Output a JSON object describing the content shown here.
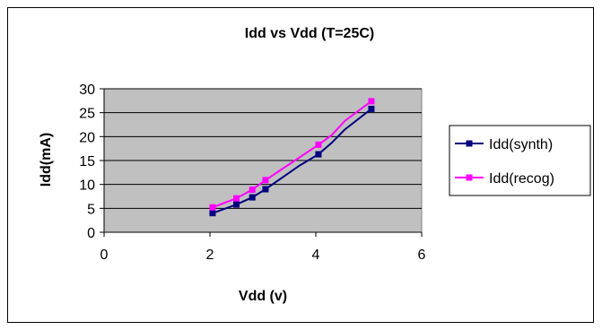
{
  "chart_data": {
    "type": "line",
    "title": "Idd vs Vdd (T=25C)",
    "xlabel": "Vdd (v)",
    "ylabel": "Idd(mA)",
    "xlim": [
      0,
      6
    ],
    "ylim": [
      0,
      30
    ],
    "xticks": [
      0,
      2,
      4,
      6
    ],
    "yticks": [
      0,
      5,
      10,
      15,
      20,
      25,
      30
    ],
    "grid": true,
    "plot_background": "#c0c0c0",
    "legend_position": "right",
    "series": [
      {
        "name": "Idd(synth)",
        "color": "#000080",
        "marker": "square",
        "x": [
          2.05,
          2.5,
          2.8,
          3.05,
          3.7,
          4.05,
          4.3,
          4.55,
          5.05
        ],
        "y": [
          4,
          5.8,
          7.3,
          9,
          14,
          16.3,
          18.7,
          21.5,
          25.8
        ],
        "marker_indices": [
          0,
          1,
          2,
          3,
          5,
          8
        ]
      },
      {
        "name": "Idd(recog)",
        "color": "#ff00ff",
        "marker": "square",
        "x": [
          2.05,
          2.5,
          2.8,
          3.05,
          3.7,
          4.05,
          4.3,
          4.55,
          5.05
        ],
        "y": [
          5.2,
          7.1,
          8.9,
          10.9,
          15.7,
          18.3,
          20.3,
          23.3,
          27.4
        ],
        "marker_indices": [
          0,
          1,
          2,
          3,
          5,
          8
        ]
      }
    ]
  }
}
